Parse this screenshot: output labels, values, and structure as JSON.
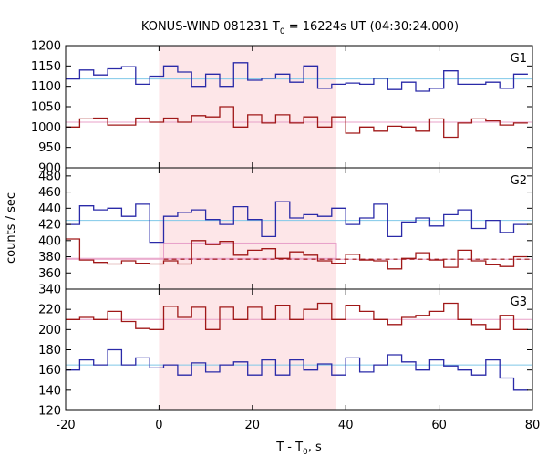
{
  "chart_data": {
    "type": "line",
    "title": {
      "prefix": "KONUS-WIND 081231 T",
      "subscript": "0",
      "suffix": " = 16224s UT (04:30:24.000)"
    },
    "xlabel": {
      "prefix": "T - T",
      "subscript": "0",
      "suffix": ", s"
    },
    "ylabel": "counts / sec",
    "xlim": [
      -20,
      80
    ],
    "xticks": [
      -20,
      0,
      20,
      40,
      60,
      80
    ],
    "highlight_interval": [
      0,
      38
    ],
    "colors": {
      "blue": "#2a2aa8",
      "red": "#a01818",
      "blue_fit": "#7fc8e8",
      "red_fit": "#e8a0c8",
      "highlight": "#fde6e8"
    },
    "panels": [
      {
        "label": "G1",
        "ylim": [
          900,
          1200
        ],
        "yticks": [
          900,
          950,
          1000,
          1050,
          1100,
          1150,
          1200
        ],
        "x_edges": [
          -20,
          -17,
          -14,
          -11,
          -8,
          -5,
          -2,
          1,
          4,
          7,
          10,
          13,
          16,
          19,
          22,
          25,
          28,
          31,
          34,
          37,
          40,
          43,
          46,
          49,
          52,
          55,
          58,
          61,
          64,
          67,
          70,
          73,
          76,
          79
        ],
        "series": [
          {
            "color": "blue",
            "values": [
              1118,
              1140,
              1128,
              1143,
              1148,
              1105,
              1125,
              1150,
              1135,
              1100,
              1130,
              1100,
              1158,
              1115,
              1120,
              1130,
              1110,
              1150,
              1095,
              1105,
              1108,
              1105,
              1120,
              1092,
              1110,
              1088,
              1095,
              1138,
              1105,
              1105,
              1110,
              1095,
              1130
            ]
          },
          {
            "color": "red",
            "values": [
              1000,
              1020,
              1022,
              1005,
              1005,
              1022,
              1012,
              1022,
              1012,
              1028,
              1025,
              1050,
              1000,
              1030,
              1010,
              1030,
              1010,
              1025,
              1000,
              1025,
              985,
              1000,
              990,
              1002,
              1000,
              990,
              1020,
              975,
              1010,
              1020,
              1015,
              1005,
              1010
            ]
          }
        ],
        "fits": [
          {
            "color": "blue_fit",
            "value": 1118
          },
          {
            "color": "red_fit",
            "value": 1012
          }
        ]
      },
      {
        "label": "G2",
        "ylim": [
          340,
          490
        ],
        "yticks": [
          340,
          360,
          380,
          400,
          420,
          440,
          460,
          480
        ],
        "x_edges": [
          -20,
          -17,
          -14,
          -11,
          -8,
          -5,
          -2,
          1,
          4,
          7,
          10,
          13,
          16,
          19,
          22,
          25,
          28,
          31,
          34,
          37,
          40,
          43,
          46,
          49,
          52,
          55,
          58,
          61,
          64,
          67,
          70,
          73,
          76,
          79
        ],
        "series": [
          {
            "color": "blue",
            "values": [
              420,
              443,
              438,
              440,
              430,
              445,
              398,
              430,
              435,
              438,
              426,
              420,
              442,
              426,
              405,
              448,
              428,
              432,
              430,
              440,
              420,
              428,
              445,
              405,
              423,
              428,
              418,
              432,
              438,
              415,
              425,
              410,
              420
            ]
          },
          {
            "color": "red",
            "values": [
              402,
              376,
              373,
              371,
              375,
              372,
              371,
              375,
              371,
              400,
              395,
              399,
              382,
              388,
              390,
              378,
              386,
              382,
              375,
              372,
              383,
              376,
              375,
              365,
              378,
              385,
              376,
              367,
              388,
              375,
              370,
              368,
              380
            ]
          }
        ],
        "fits": [
          {
            "color": "blue_fit",
            "value": 425
          },
          {
            "color": "red_fit",
            "value": 377
          }
        ],
        "extras": {
          "dashed_level": 377,
          "pre_level": 378,
          "burst_box": {
            "x0": 1,
            "x1": 38,
            "y0": 378,
            "y1": 397
          }
        }
      },
      {
        "label": "G3",
        "ylim": [
          120,
          240
        ],
        "yticks": [
          120,
          140,
          160,
          180,
          200,
          220
        ],
        "x_edges": [
          -20,
          -17,
          -14,
          -11,
          -8,
          -5,
          -2,
          1,
          4,
          7,
          10,
          13,
          16,
          19,
          22,
          25,
          28,
          31,
          34,
          37,
          40,
          43,
          46,
          49,
          52,
          55,
          58,
          61,
          64,
          67,
          70,
          73,
          76,
          79
        ],
        "series": [
          {
            "color": "red",
            "values": [
              210,
              212,
              210,
              218,
              208,
              201,
              200,
              223,
              212,
              222,
              200,
              222,
              210,
              222,
              210,
              224,
              210,
              220,
              226,
              210,
              224,
              218,
              210,
              205,
              212,
              214,
              218,
              226,
              210,
              205,
              200,
              214,
              200
            ]
          },
          {
            "color": "blue",
            "values": [
              160,
              170,
              165,
              180,
              165,
              172,
              162,
              165,
              155,
              167,
              158,
              165,
              168,
              155,
              170,
              155,
              170,
              160,
              166,
              155,
              172,
              158,
              165,
              175,
              168,
              160,
              170,
              164,
              160,
              155,
              170,
              152,
              140
            ]
          }
        ],
        "fits": [
          {
            "color": "red_fit",
            "value": 210
          },
          {
            "color": "blue_fit",
            "value": 165
          }
        ]
      }
    ]
  }
}
